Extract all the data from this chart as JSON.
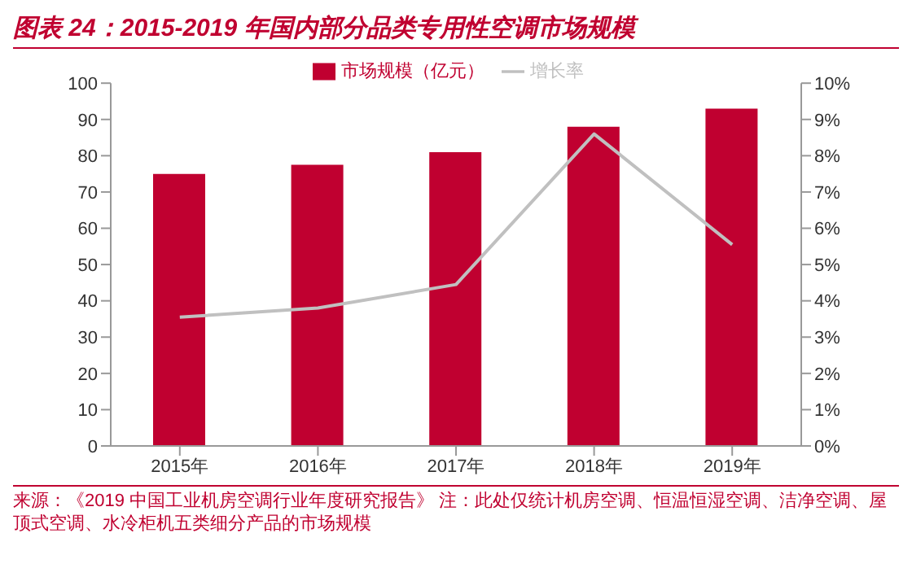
{
  "chart_data": {
    "type": "bar",
    "title": "图表 24：2015-2019 年国内部分品类专用性空调市场规模",
    "categories": [
      "2015年",
      "2016年",
      "2017年",
      "2018年",
      "2019年"
    ],
    "series": [
      {
        "name": "市场规模（亿元）",
        "color": "#c00030",
        "values": [
          75,
          77.5,
          81,
          88,
          93
        ]
      },
      {
        "name": "增长率",
        "type": "line",
        "axis": "y2",
        "color": "#c0c0c0",
        "values": [
          3.55,
          3.8,
          4.45,
          8.6,
          5.55
        ]
      }
    ],
    "ylim": [
      0,
      100
    ],
    "yticks": [
      0,
      10,
      20,
      30,
      40,
      50,
      60,
      70,
      80,
      90,
      100
    ],
    "y2lim": [
      0,
      10
    ],
    "y2ticks": [
      {
        "value": 0,
        "label": "0%"
      },
      {
        "value": 1,
        "label": "1%"
      },
      {
        "value": 2,
        "label": "2%"
      },
      {
        "value": 3,
        "label": "3%"
      },
      {
        "value": 4,
        "label": "4%"
      },
      {
        "value": 5,
        "label": "5%"
      },
      {
        "value": 6,
        "label": "6%"
      },
      {
        "value": 7,
        "label": "7%"
      },
      {
        "value": 8,
        "label": "8%"
      },
      {
        "value": 9,
        "label": "9%"
      },
      {
        "value": 10,
        "label": "10%"
      }
    ],
    "grid": false,
    "legend": "top",
    "marker": "none",
    "line_style": "solid",
    "annotations": [
      "来源：《2019 中国工业机房空调行业年度研究报告》 注：此处仅统计机房空调、恒温恒湿空调、洁净空调、屋顶式空调、水冷柜机五类细分产品的市场规模"
    ]
  }
}
